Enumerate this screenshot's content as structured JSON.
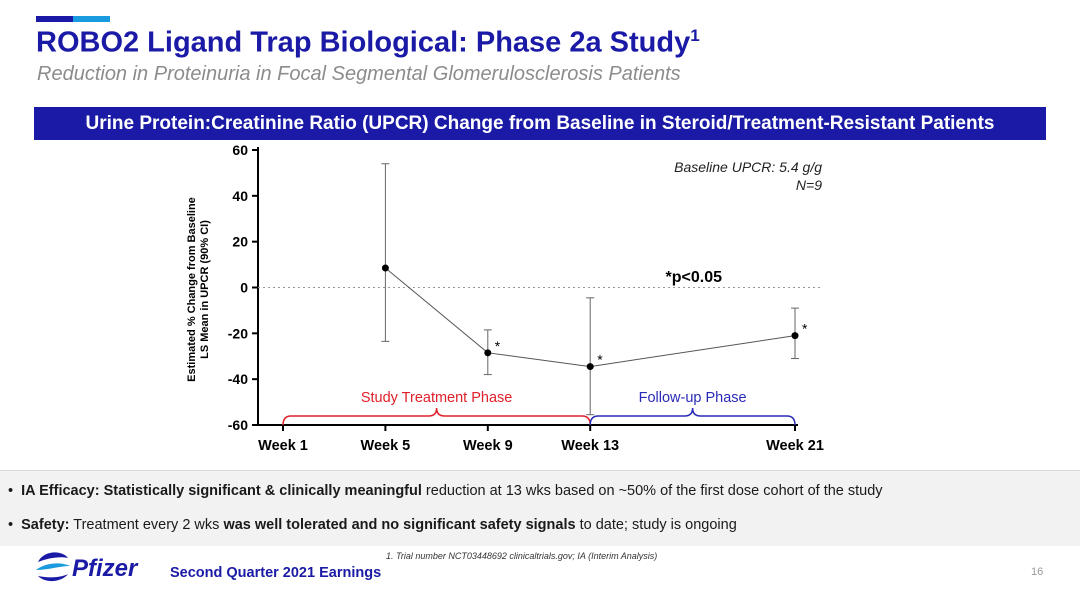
{
  "header": {
    "title": "ROBO2 Ligand Trap Biological: Phase 2a Study",
    "title_sup": "1",
    "subtitle": "Reduction in Proteinuria in Focal Segmental Glomerulosclerosis Patients"
  },
  "banner": "Urine Protein:Creatinine Ratio (UPCR) Change from Baseline in Steroid/Treatment-Resistant Patients",
  "chart_data": {
    "type": "line",
    "ylabel_line1": "Estimated % Change from Baseline",
    "ylabel_line2": "LS Mean in UPCR (90% CI)",
    "ylim": [
      -60,
      60
    ],
    "yticks": [
      60,
      40,
      20,
      0,
      -20,
      -40,
      -60
    ],
    "x_ticks": [
      {
        "week": 1,
        "label": "Week 1"
      },
      {
        "week": 5,
        "label": "Week 5"
      },
      {
        "week": 9,
        "label": "Week 9"
      },
      {
        "week": 13,
        "label": "Week 13"
      },
      {
        "week": 21,
        "label": "Week 21"
      }
    ],
    "x_range": [
      1,
      21
    ],
    "series": [
      {
        "points": [
          {
            "week": 5,
            "value": 8.5,
            "ci_low": -23.5,
            "ci_high": 54,
            "significant": false
          },
          {
            "week": 9,
            "value": -28.5,
            "ci_low": -38,
            "ci_high": -18.5,
            "significant": true
          },
          {
            "week": 13,
            "value": -34.5,
            "ci_low": -55.5,
            "ci_high": -4.5,
            "significant": true
          },
          {
            "week": 21,
            "value": -21,
            "ci_low": -31,
            "ci_high": -9,
            "significant": true
          }
        ]
      }
    ],
    "reference_line": 0,
    "annotations": {
      "baseline": "Baseline UPCR: 5.4 g/g",
      "n": "N=9",
      "pvalue": "*p<0.05",
      "sig_marker": "*"
    },
    "phases": [
      {
        "label": "Study Treatment Phase",
        "start_week": 1,
        "end_week": 13,
        "color": "#e0202a"
      },
      {
        "label": "Follow-up Phase",
        "start_week": 13,
        "end_week": 21,
        "color": "#2a2ab8"
      }
    ]
  },
  "bullets": [
    {
      "lead": "IA Efficacy:",
      "bold": "Statistically significant & clinically meaningful",
      "rest": "reduction at 13 wks based on ~50% of the first dose cohort of the study"
    },
    {
      "lead": "Safety:",
      "pre": "Treatment every 2 wks",
      "bold": "was well tolerated and no significant safety signals",
      "rest": "to date; study is ongoing"
    }
  ],
  "footer": {
    "note": "1. Trial number NCT03448692 clinicaltrials.gov; IA (Interim Analysis)",
    "logo_text": "Pfizer",
    "label": "Second Quarter 2021 Earnings",
    "page": "16"
  },
  "colors": {
    "brand": "#1a1aa6",
    "accent": "#1a9be0",
    "treatment": "#e0202a",
    "followup": "#2a2ab8"
  }
}
